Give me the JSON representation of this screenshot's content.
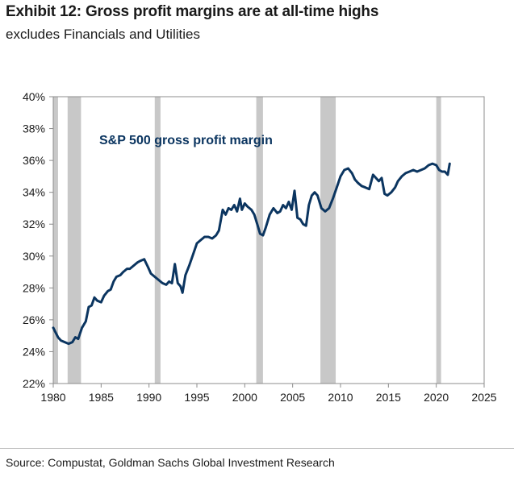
{
  "title": "Exhibit 12: Gross profit margins are at all-time highs",
  "subtitle": "excludes Financials and Utilities",
  "source": "Source: Compustat, Goldman Sachs Global Investment Research",
  "chart_data": {
    "type": "line",
    "annotation": "S&P 500 gross profit margin",
    "xlim": [
      1980,
      2025
    ],
    "ylim": [
      22,
      40
    ],
    "x_ticks": [
      1980,
      1985,
      1990,
      1995,
      2000,
      2005,
      2010,
      2015,
      2020,
      2025
    ],
    "x_tick_labels": [
      "1980",
      "1985",
      "1990",
      "1995",
      "2000",
      "2005",
      "2010",
      "2015",
      "2020",
      "2025"
    ],
    "y_ticks": [
      22,
      24,
      26,
      28,
      30,
      32,
      34,
      36,
      38,
      40
    ],
    "y_tick_labels": [
      "22%",
      "24%",
      "26%",
      "28%",
      "30%",
      "32%",
      "34%",
      "36%",
      "38%",
      "40%"
    ],
    "grid": false,
    "line_color": "#0b3560",
    "recession_color": "#c8c8c8",
    "recessions": [
      [
        1980.0,
        1980.5
      ],
      [
        1981.5,
        1982.9
      ],
      [
        1990.6,
        1991.2
      ],
      [
        2001.2,
        2001.9
      ],
      [
        2007.9,
        2009.5
      ],
      [
        2020.0,
        2020.5
      ]
    ],
    "series": [
      {
        "x": [
          1980.0,
          1980.5,
          1980.8,
          1981.2,
          1981.6,
          1982.0,
          1982.3,
          1982.6,
          1983.0,
          1983.4,
          1983.7,
          1984.0,
          1984.3,
          1984.6,
          1985.0,
          1985.3,
          1985.7,
          1986.0,
          1986.3,
          1986.6,
          1987.0,
          1987.3,
          1987.7,
          1988.0,
          1988.4,
          1988.8,
          1989.1,
          1989.5,
          1989.9,
          1990.2,
          1990.6,
          1991.0,
          1991.4,
          1991.8,
          1992.1,
          1992.4,
          1992.7,
          1993.0,
          1993.3,
          1993.5,
          1993.8,
          1994.2,
          1994.6,
          1995.0,
          1995.4,
          1995.8,
          1996.2,
          1996.6,
          1997.0,
          1997.3,
          1997.7,
          1998.0,
          1998.3,
          1998.6,
          1998.9,
          1999.2,
          1999.5,
          1999.7,
          2000.0,
          2000.3,
          2000.7,
          2001.0,
          2001.3,
          2001.6,
          2001.9,
          2002.2,
          2002.6,
          2003.0,
          2003.4,
          2003.7,
          2004.0,
          2004.3,
          2004.6,
          2004.9,
          2005.2,
          2005.5,
          2005.8,
          2006.1,
          2006.4,
          2006.7,
          2007.0,
          2007.3,
          2007.6,
          2008.0,
          2008.4,
          2008.8,
          2009.2,
          2009.6,
          2010.0,
          2010.4,
          2010.8,
          2011.2,
          2011.5,
          2011.8,
          2012.2,
          2012.6,
          2013.0,
          2013.4,
          2013.7,
          2014.0,
          2014.3,
          2014.6,
          2014.9,
          2015.3,
          2015.7,
          2016.0,
          2016.4,
          2016.8,
          2017.2,
          2017.6,
          2018.0,
          2018.4,
          2018.8,
          2019.2,
          2019.6,
          2020.0,
          2020.3,
          2020.6,
          2020.9,
          2021.2,
          2021.4
        ],
        "y": [
          25.5,
          24.9,
          24.7,
          24.6,
          24.5,
          24.6,
          24.9,
          24.8,
          25.5,
          25.9,
          26.8,
          26.9,
          27.4,
          27.2,
          27.1,
          27.5,
          27.8,
          27.9,
          28.4,
          28.7,
          28.8,
          29.0,
          29.2,
          29.2,
          29.4,
          29.6,
          29.7,
          29.8,
          29.3,
          28.9,
          28.7,
          28.5,
          28.3,
          28.2,
          28.4,
          28.3,
          29.5,
          28.3,
          28.1,
          27.7,
          28.8,
          29.4,
          30.1,
          30.8,
          31.0,
          31.2,
          31.2,
          31.1,
          31.3,
          31.6,
          32.9,
          32.6,
          33.0,
          32.9,
          33.2,
          32.8,
          33.6,
          32.9,
          33.3,
          33.1,
          32.9,
          32.6,
          32.0,
          31.4,
          31.3,
          31.8,
          32.6,
          33.0,
          32.7,
          32.8,
          33.2,
          33.0,
          33.4,
          32.9,
          34.1,
          32.4,
          32.3,
          32.0,
          31.9,
          33.2,
          33.8,
          34.0,
          33.8,
          33.0,
          32.8,
          33.0,
          33.6,
          34.3,
          35.0,
          35.4,
          35.5,
          35.2,
          34.8,
          34.6,
          34.4,
          34.3,
          34.2,
          35.1,
          34.9,
          34.7,
          34.9,
          33.9,
          33.8,
          34.0,
          34.3,
          34.7,
          35.0,
          35.2,
          35.3,
          35.4,
          35.3,
          35.4,
          35.5,
          35.7,
          35.8,
          35.7,
          35.4,
          35.3,
          35.3,
          35.1,
          35.8
        ]
      }
    ]
  }
}
